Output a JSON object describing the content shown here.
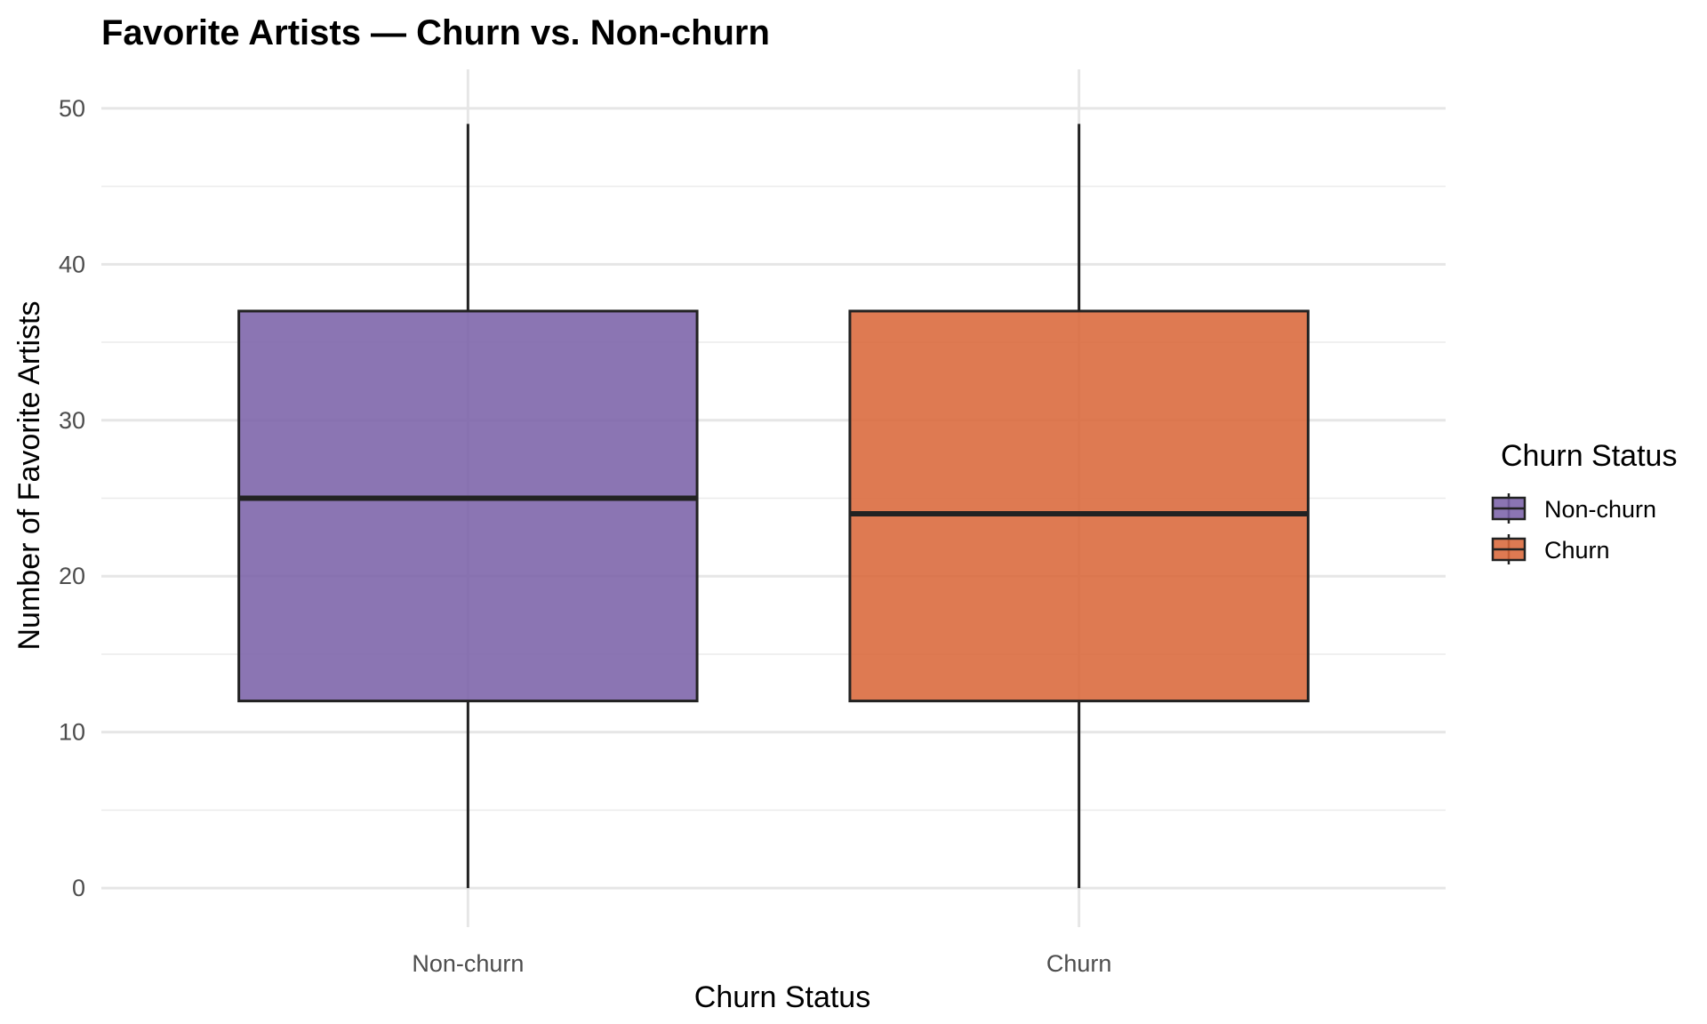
{
  "chart_data": {
    "type": "box",
    "title": "Favorite Artists — Churn vs. Non-churn",
    "xlabel": "Churn Status",
    "ylabel": "Number of Favorite Artists",
    "ylim": [
      -2.5,
      52.5
    ],
    "yticks": [
      0,
      10,
      20,
      30,
      40,
      50
    ],
    "ytick_labels": [
      "0",
      "10",
      "20",
      "30",
      "40",
      "50"
    ],
    "grid": true,
    "categories": [
      "Non-churn",
      "Churn"
    ],
    "series": [
      {
        "name": "Non-churn",
        "color": "#7b62a8",
        "min": 0,
        "q1": 12,
        "median": 25,
        "q3": 37,
        "max": 49
      },
      {
        "name": "Churn",
        "color": "#d9683a",
        "min": 0,
        "q1": 12,
        "median": 24,
        "q3": 37,
        "max": 49
      }
    ],
    "legend": {
      "title": "Churn Status",
      "position": "right",
      "entries": [
        "Non-churn",
        "Churn"
      ]
    }
  }
}
